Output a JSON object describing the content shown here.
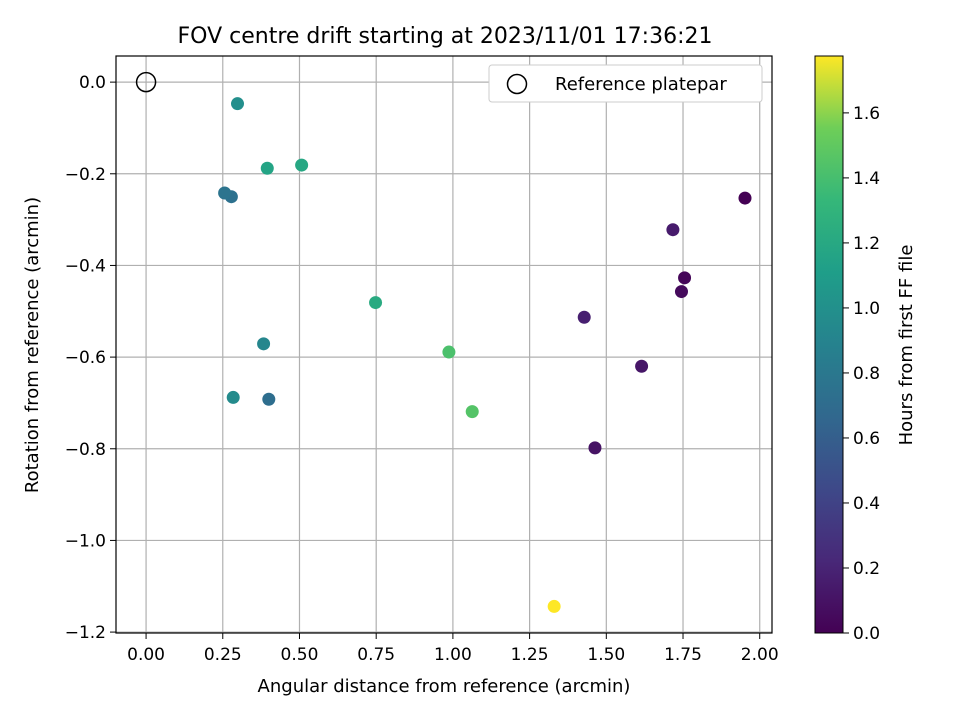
{
  "chart_data": {
    "type": "scatter",
    "title": "FOV centre drift starting at 2023/11/01 17:36:21",
    "xlabel": "Angular distance from reference (arcmin)",
    "ylabel": "Rotation from reference (arcmin)",
    "xlim": [
      -0.098,
      2.04
    ],
    "ylim": [
      -1.202,
      0.057
    ],
    "xticks": [
      0.0,
      0.25,
      0.5,
      0.75,
      1.0,
      1.25,
      1.5,
      1.75,
      2.0
    ],
    "xtick_labels": [
      "0.00",
      "0.25",
      "0.50",
      "0.75",
      "1.00",
      "1.25",
      "1.50",
      "1.75",
      "2.00"
    ],
    "yticks": [
      0.0,
      -0.2,
      -0.4,
      -0.6,
      -0.8,
      -1.0,
      -1.2
    ],
    "ytick_labels": [
      "0.0",
      "−0.2",
      "−0.4",
      "−0.6",
      "−0.8",
      "−1.0",
      "−1.2"
    ],
    "grid": true,
    "legend": {
      "position": "top-right",
      "entries": [
        "Reference platepar"
      ]
    },
    "reference_point": {
      "x": 0.0,
      "y": 0.0,
      "label": "Reference platepar"
    },
    "colorbar": {
      "label": "Hours from first FF file",
      "range": [
        0.0,
        1.775
      ],
      "ticks": [
        0.0,
        0.2,
        0.4,
        0.6,
        0.8,
        1.0,
        1.2,
        1.4,
        1.6
      ],
      "tick_labels": [
        "0.0",
        "0.2",
        "0.4",
        "0.6",
        "0.8",
        "1.0",
        "1.2",
        "1.4",
        "1.6"
      ],
      "colormap": "viridis"
    },
    "points": [
      {
        "x": 1.952,
        "y": -0.253,
        "hours": 0.0
      },
      {
        "x": 1.755,
        "y": -0.427,
        "hours": 0.03
      },
      {
        "x": 1.745,
        "y": -0.457,
        "hours": 0.05
      },
      {
        "x": 1.463,
        "y": -0.798,
        "hours": 0.1
      },
      {
        "x": 1.615,
        "y": -0.62,
        "hours": 0.12
      },
      {
        "x": 1.717,
        "y": -0.322,
        "hours": 0.15
      },
      {
        "x": 1.428,
        "y": -0.513,
        "hours": 0.17
      },
      {
        "x": 0.4,
        "y": -0.692,
        "hours": 0.72
      },
      {
        "x": 0.278,
        "y": -0.25,
        "hours": 0.74
      },
      {
        "x": 0.256,
        "y": -0.242,
        "hours": 0.77
      },
      {
        "x": 0.383,
        "y": -0.571,
        "hours": 0.92
      },
      {
        "x": 0.284,
        "y": -0.688,
        "hours": 0.96
      },
      {
        "x": 0.298,
        "y": -0.047,
        "hours": 0.99
      },
      {
        "x": 0.395,
        "y": -0.188,
        "hours": 1.16
      },
      {
        "x": 0.507,
        "y": -0.181,
        "hours": 1.19
      },
      {
        "x": 0.748,
        "y": -0.481,
        "hours": 1.22
      },
      {
        "x": 0.987,
        "y": -0.589,
        "hours": 1.42
      },
      {
        "x": 1.063,
        "y": -0.719,
        "hours": 1.45
      },
      {
        "x": 1.33,
        "y": -1.144,
        "hours": 1.775
      }
    ]
  }
}
